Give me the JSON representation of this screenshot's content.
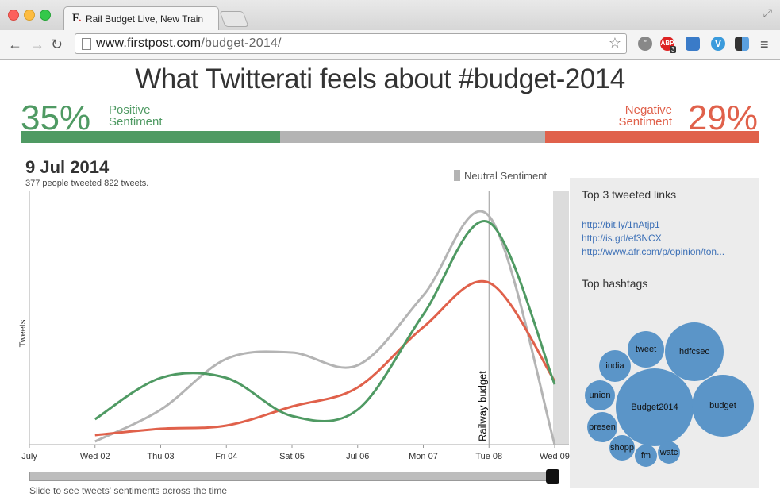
{
  "browser": {
    "tab_title": "Rail Budget Live, New Train",
    "url_domain": "www.firstpost.com",
    "url_path": "/budget-2014/",
    "abp_badge": "3"
  },
  "page": {
    "title": "What Twitterati feels about #budget-2014",
    "positive_pct": "35%",
    "positive_label_1": "Positive",
    "positive_label_2": "Sentiment",
    "negative_pct": "29%",
    "negative_label_1": "Negative",
    "negative_label_2": "Sentiment",
    "sentiment_split": {
      "positive": 35,
      "neutral": 36,
      "negative": 29
    },
    "colors": {
      "positive": "#4f9a63",
      "neutral": "#b4b4b4",
      "negative": "#e0614b"
    }
  },
  "chart_header": {
    "date": "9 Jul 2014",
    "summary": "377 people tweeted 822 tweets.",
    "legend_neutral": "Neutral Sentiment"
  },
  "chart_data": {
    "type": "line",
    "ylabel": "Tweets",
    "x": [
      "July",
      "Wed 02",
      "Thu 03",
      "Fri 04",
      "Sat 05",
      "Jul 06",
      "Mon 07",
      "Tue 08",
      "Wed 09"
    ],
    "annotation": "Railway budget",
    "annotation_x": "Tue 08",
    "series": [
      {
        "color": "#4f9a63",
        "values": [
          null,
          8,
          21,
          21,
          9,
          11,
          41,
          70,
          19
        ]
      },
      {
        "color": "#b4b4b4",
        "values": [
          null,
          1,
          11,
          27,
          29,
          25,
          47,
          72,
          0
        ]
      },
      {
        "color": "#e0614b",
        "values": [
          null,
          3,
          5,
          6,
          12,
          18,
          37,
          51,
          20
        ]
      }
    ]
  },
  "slider": {
    "caption": "Slide to see tweets' sentiments across the time",
    "position": 1.0
  },
  "side_panel": {
    "links_title": "Top 3 tweeted links",
    "links": [
      "http://bit.ly/1nAtjp1",
      "http://is.gd/ef3NCX",
      "http://www.afr.com/p/opinion/ton..."
    ],
    "hashtags_title": "Top hashtags",
    "hashtags": [
      "Budget2014",
      "budget",
      "hdfcsec",
      "tweet",
      "india",
      "union",
      "presen",
      "shopp",
      "fm",
      "watc"
    ]
  }
}
